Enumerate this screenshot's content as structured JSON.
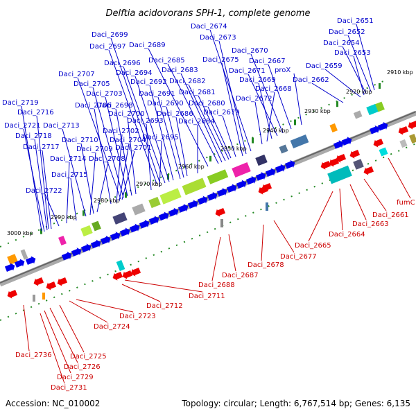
{
  "title": "Delftia acidovorans SPH-1, complete genome",
  "accession": "Accession: NC_010002",
  "topology": "Topology: circular; Length: 6,767,514 bp; Genes: 6,135",
  "colors": {
    "forward_label": "#0000cc",
    "reverse_label": "#cc0000",
    "forward_arrow": "#0000ee",
    "reverse_arrow": "#ee0000",
    "backbone": "#888888",
    "tick": "#228822"
  },
  "ticks": [
    "2910 kbp",
    "2920 kbp",
    "2930 kbp",
    "2940 kbp",
    "2950 kbp",
    "2960 kbp",
    "2970 kbp",
    "2980 kbp",
    "2990 kbp",
    "3000 kbp"
  ],
  "forward_labels": [
    "Daci_2651",
    "Daci_2652",
    "Daci_2654",
    "Daci_2653",
    "Daci_2659",
    "Daci_2662",
    "proX",
    "Daci_2667",
    "Daci_2670",
    "Daci_2671",
    "Daci_2669",
    "Daci_2668",
    "Daci_2672",
    "Daci_2674",
    "Daci_2673",
    "Daci_2675",
    "Daci_2689",
    "Daci_2685",
    "Daci_2683",
    "Daci_2682",
    "Daci_2681",
    "Daci_2680",
    "Daci_2679",
    "Daci_2699",
    "Daci_2697",
    "Daci_2696",
    "Daci_2694",
    "Daci_2692",
    "Daci_2691",
    "Daci_2690",
    "Daci_2686",
    "Daci_2684",
    "Daci_2707",
    "Daci_2705",
    "Daci_2703",
    "Daci_2706",
    "Daci_2698",
    "Daci_2700",
    "Daci_2693",
    "Daci_2695",
    "Daci_2702",
    "Daci_2704",
    "Daci_2701",
    "Daci_2719",
    "Daci_2716",
    "Daci_2721",
    "Daci_2713",
    "Daci_2718",
    "Daci_2710",
    "Daci_2717",
    "Daci_2709",
    "Daci_2714",
    "Daci_2708",
    "Daci_2715",
    "Daci_2722"
  ],
  "reverse_labels": [
    "fumC",
    "Daci_2661",
    "Daci_2663",
    "Daci_2664",
    "Daci_2665",
    "Daci_2677",
    "Daci_2678",
    "Daci_2687",
    "Daci_2688",
    "Daci_2711",
    "Daci_2712",
    "Daci_2723",
    "Daci_2724",
    "Daci_2736",
    "Daci_2725",
    "Daci_2726",
    "Daci_2729",
    "Daci_2731"
  ]
}
